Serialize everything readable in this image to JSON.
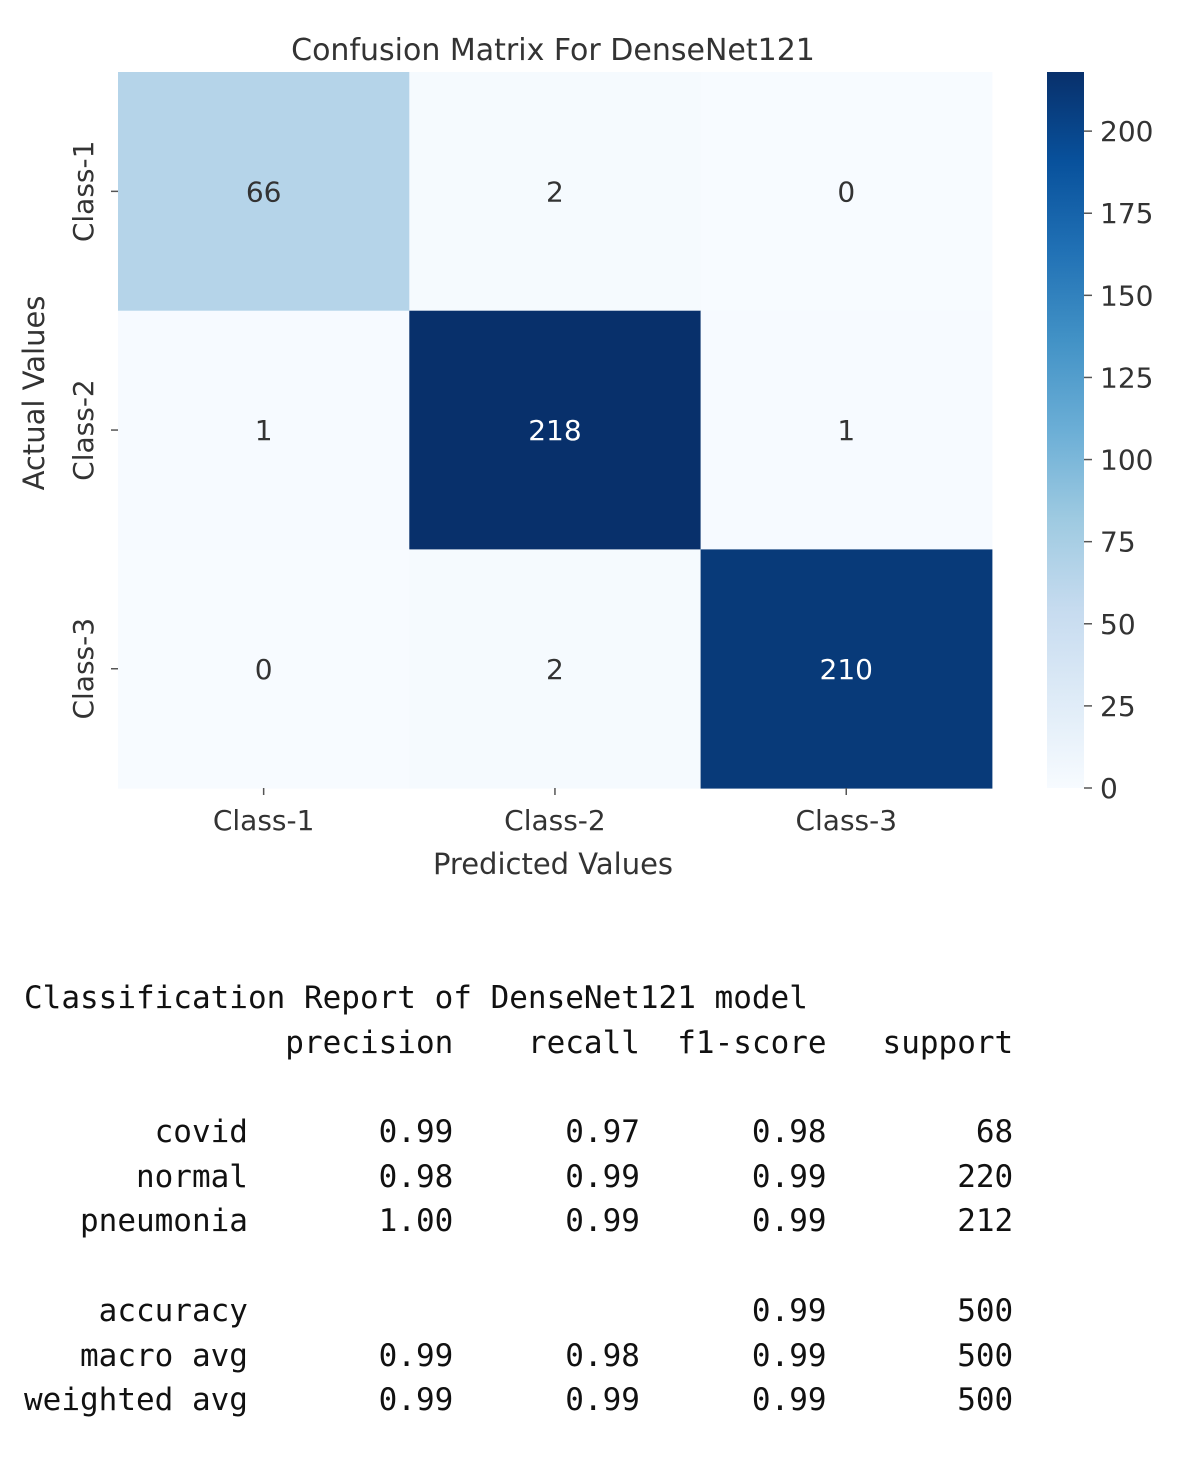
{
  "chart_data": {
    "type": "heatmap",
    "title": "Confusion Matrix For DenseNet121",
    "xlabel": "Predicted Values",
    "ylabel": "Actual Values",
    "x_categories": [
      "Class-1",
      "Class-2",
      "Class-3"
    ],
    "y_categories": [
      "Class-1",
      "Class-2",
      "Class-3"
    ],
    "values": [
      [
        66,
        2,
        0
      ],
      [
        1,
        218,
        1
      ],
      [
        0,
        2,
        210
      ]
    ],
    "colormap": "Blues",
    "colorbar": {
      "range": [
        0,
        218
      ],
      "ticks": [
        0,
        25,
        50,
        75,
        100,
        125,
        150,
        175,
        200
      ]
    }
  },
  "report": {
    "title": "Classification Report of DenseNet121 model",
    "header": [
      "precision",
      "recall",
      "f1-score",
      "support"
    ],
    "rows": [
      {
        "label": "covid",
        "precision": "0.99",
        "recall": "0.97",
        "f1": "0.98",
        "support": "68"
      },
      {
        "label": "normal",
        "precision": "0.98",
        "recall": "0.99",
        "f1": "0.99",
        "support": "220"
      },
      {
        "label": "pneumonia",
        "precision": "1.00",
        "recall": "0.99",
        "f1": "0.99",
        "support": "212"
      }
    ],
    "summary": [
      {
        "label": "accuracy",
        "precision": "",
        "recall": "",
        "f1": "0.99",
        "support": "500"
      },
      {
        "label": "macro avg",
        "precision": "0.99",
        "recall": "0.98",
        "f1": "0.99",
        "support": "500"
      },
      {
        "label": "weighted avg",
        "precision": "0.99",
        "recall": "0.99",
        "f1": "0.99",
        "support": "500"
      }
    ]
  }
}
